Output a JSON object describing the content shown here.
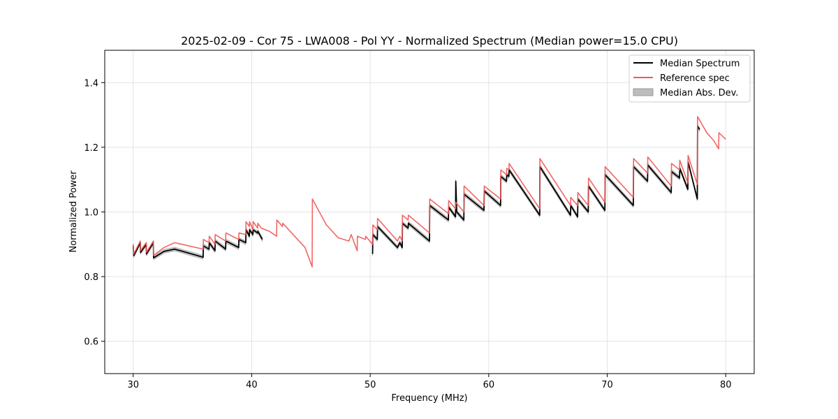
{
  "chart_data": {
    "type": "line",
    "title": "2025-02-09 - Cor 75 - LWA008 - Pol YY - Normalized Spectrum (Median power=15.0 CPU)",
    "xlabel": "Frequency (MHz)",
    "ylabel": "Normalized Power",
    "xlim": [
      27.6,
      82.4
    ],
    "ylim": [
      0.5,
      1.5
    ],
    "xticks": [
      30,
      40,
      50,
      60,
      70,
      80
    ],
    "yticks": [
      0.6,
      0.8,
      1.0,
      1.2,
      1.4
    ],
    "xtick_labels": [
      "30",
      "40",
      "50",
      "60",
      "70",
      "80"
    ],
    "ytick_labels": [
      "0.6",
      "0.8",
      "1.0",
      "1.2",
      "1.4"
    ],
    "grid": true,
    "legend_position": "top-right",
    "legend": [
      "Median Spectrum",
      "Reference spec",
      "Median Abs. Dev."
    ],
    "colors": {
      "median": "#000000",
      "reference": "#f05a5a",
      "mad": "#bdbdbd"
    },
    "mad_halfwidth": 0.006,
    "series": [
      {
        "name": "Reference spec",
        "segments": [
          [
            [
              30.0,
              0.9
            ],
            [
              30.05,
              0.87
            ],
            [
              30.6,
              0.91
            ],
            [
              30.62,
              0.88
            ],
            [
              31.1,
              0.905
            ],
            [
              31.12,
              0.875
            ],
            [
              31.7,
              0.91
            ],
            [
              31.72,
              0.865
            ],
            [
              32.6,
              0.89
            ],
            [
              33.5,
              0.905
            ],
            [
              35.9,
              0.885
            ],
            [
              35.92,
              0.915
            ],
            [
              36.4,
              0.905
            ],
            [
              36.42,
              0.925
            ],
            [
              36.9,
              0.9
            ],
            [
              36.92,
              0.93
            ],
            [
              37.8,
              0.91
            ],
            [
              37.82,
              0.935
            ],
            [
              38.9,
              0.915
            ],
            [
              38.92,
              0.935
            ],
            [
              39.5,
              0.93
            ],
            [
              39.52,
              0.97
            ],
            [
              39.8,
              0.955
            ],
            [
              39.82,
              0.97
            ],
            [
              40.1,
              0.945
            ],
            [
              40.12,
              0.97
            ],
            [
              40.5,
              0.95
            ],
            [
              40.52,
              0.965
            ],
            [
              40.8,
              0.95
            ],
            [
              41.5,
              0.94
            ],
            [
              42.1,
              0.925
            ],
            [
              42.12,
              0.975
            ],
            [
              42.6,
              0.955
            ],
            [
              42.62,
              0.965
            ],
            [
              44.5,
              0.89
            ],
            [
              45.1,
              0.83
            ],
            [
              45.12,
              1.04
            ],
            [
              46.3,
              0.96
            ],
            [
              47.3,
              0.92
            ],
            [
              48.2,
              0.91
            ],
            [
              48.4,
              0.93
            ],
            [
              48.9,
              0.88
            ],
            [
              48.92,
              0.925
            ],
            [
              49.6,
              0.915
            ],
            [
              49.62,
              0.925
            ],
            [
              50.2,
              0.9
            ],
            [
              50.22,
              0.96
            ],
            [
              50.6,
              0.945
            ],
            [
              50.62,
              0.98
            ],
            [
              52.3,
              0.91
            ],
            [
              52.5,
              0.925
            ],
            [
              52.7,
              0.91
            ],
            [
              52.72,
              0.99
            ],
            [
              53.2,
              0.975
            ],
            [
              53.22,
              0.99
            ],
            [
              55.0,
              0.935
            ],
            [
              55.02,
              1.04
            ],
            [
              56.6,
              0.995
            ],
            [
              56.62,
              1.035
            ],
            [
              57.2,
              1.01
            ],
            [
              57.22,
              1.03
            ],
            [
              57.9,
              1.0
            ],
            [
              57.92,
              1.08
            ],
            [
              59.6,
              1.02
            ],
            [
              59.62,
              1.08
            ],
            [
              61.0,
              1.04
            ],
            [
              61.02,
              1.13
            ],
            [
              61.5,
              1.115
            ],
            [
              61.52,
              1.135
            ],
            [
              61.7,
              1.13
            ],
            [
              61.72,
              1.15
            ],
            [
              64.3,
              1.01
            ],
            [
              64.32,
              1.165
            ],
            [
              66.9,
              1.02
            ],
            [
              66.92,
              1.045
            ],
            [
              67.5,
              1.02
            ],
            [
              67.52,
              1.06
            ],
            [
              68.4,
              1.02
            ],
            [
              68.42,
              1.105
            ],
            [
              69.8,
              1.03
            ],
            [
              69.82,
              1.14
            ],
            [
              72.2,
              1.045
            ],
            [
              72.22,
              1.165
            ],
            [
              73.4,
              1.12
            ],
            [
              73.42,
              1.17
            ],
            [
              75.4,
              1.08
            ],
            [
              75.42,
              1.15
            ],
            [
              76.1,
              1.13
            ],
            [
              76.12,
              1.16
            ],
            [
              76.8,
              1.09
            ],
            [
              76.82,
              1.175
            ],
            [
              77.6,
              1.085
            ],
            [
              77.62,
              1.295
            ],
            [
              78.4,
              1.245
            ],
            [
              79.0,
              1.22
            ],
            [
              79.4,
              1.195
            ],
            [
              79.42,
              1.245
            ],
            [
              80.0,
              1.225
            ]
          ]
        ]
      },
      {
        "name": "Median Spectrum",
        "segments": [
          [
            [
              30.0,
              0.895
            ],
            [
              30.05,
              0.865
            ],
            [
              30.6,
              0.905
            ],
            [
              30.62,
              0.875
            ],
            [
              31.1,
              0.9
            ],
            [
              31.12,
              0.87
            ],
            [
              31.7,
              0.905
            ],
            [
              31.72,
              0.858
            ],
            [
              32.6,
              0.878
            ],
            [
              33.5,
              0.885
            ],
            [
              35.9,
              0.86
            ],
            [
              35.92,
              0.895
            ],
            [
              36.4,
              0.885
            ],
            [
              36.42,
              0.905
            ],
            [
              36.9,
              0.88
            ],
            [
              36.92,
              0.91
            ],
            [
              37.8,
              0.885
            ],
            [
              37.82,
              0.91
            ],
            [
              38.9,
              0.89
            ],
            [
              38.92,
              0.915
            ],
            [
              39.5,
              0.905
            ],
            [
              39.52,
              0.945
            ],
            [
              39.8,
              0.925
            ],
            [
              39.82,
              0.945
            ],
            [
              40.1,
              0.93
            ],
            [
              40.12,
              0.945
            ],
            [
              40.5,
              0.935
            ],
            [
              40.52,
              0.94
            ],
            [
              40.9,
              0.915
            ]
          ],
          [
            [
              50.2,
              0.87
            ],
            [
              50.22,
              0.93
            ],
            [
              50.6,
              0.915
            ],
            [
              50.62,
              0.955
            ],
            [
              52.3,
              0.89
            ],
            [
              52.5,
              0.905
            ],
            [
              52.7,
              0.89
            ],
            [
              52.72,
              0.965
            ],
            [
              53.2,
              0.95
            ],
            [
              53.22,
              0.965
            ],
            [
              55.0,
              0.91
            ],
            [
              55.02,
              1.02
            ],
            [
              56.6,
              0.975
            ],
            [
              56.62,
              1.015
            ],
            [
              57.2,
              0.985
            ],
            [
              57.22,
              1.095
            ],
            [
              57.3,
              1.0
            ],
            [
              57.9,
              0.975
            ],
            [
              57.92,
              1.055
            ],
            [
              59.6,
              1.005
            ],
            [
              59.62,
              1.065
            ],
            [
              61.0,
              1.02
            ],
            [
              61.02,
              1.11
            ],
            [
              61.5,
              1.095
            ],
            [
              61.52,
              1.115
            ],
            [
              61.7,
              1.11
            ],
            [
              61.72,
              1.13
            ],
            [
              64.3,
              0.99
            ],
            [
              64.32,
              1.14
            ],
            [
              66.9,
              0.99
            ],
            [
              66.92,
              1.02
            ],
            [
              67.5,
              0.985
            ],
            [
              67.52,
              1.04
            ],
            [
              68.4,
              1.0
            ],
            [
              68.42,
              1.08
            ],
            [
              69.8,
              1.005
            ],
            [
              69.82,
              1.115
            ],
            [
              72.2,
              1.02
            ],
            [
              72.22,
              1.14
            ],
            [
              73.4,
              1.095
            ],
            [
              73.42,
              1.145
            ],
            [
              75.4,
              1.06
            ],
            [
              75.42,
              1.125
            ],
            [
              76.1,
              1.105
            ],
            [
              76.12,
              1.135
            ],
            [
              76.8,
              1.07
            ],
            [
              76.82,
              1.155
            ],
            [
              77.6,
              1.04
            ],
            [
              77.62,
              1.265
            ],
            [
              77.8,
              1.255
            ]
          ]
        ]
      }
    ]
  }
}
